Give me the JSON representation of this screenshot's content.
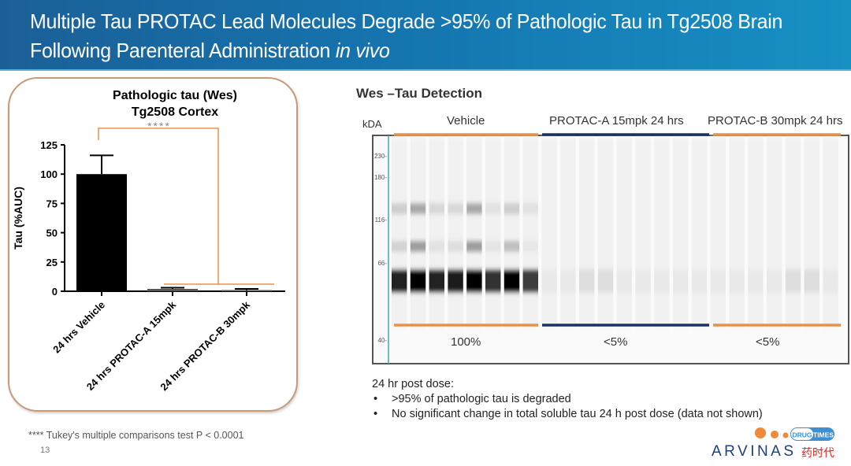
{
  "header": {
    "title_main": "Multiple Tau PROTAC Lead Molecules Degrade >95% of Pathologic Tau in Tg2508 Brain Following Parenteral Administration",
    "title_italic": "in vivo"
  },
  "chart_data": {
    "type": "bar",
    "title": "Pathologic tau (Wes)",
    "subtitle": "Tg2508 Cortex",
    "ylabel": "Tau (%AUC)",
    "xlabel": "",
    "ylim": [
      0,
      125
    ],
    "yticks": [
      "0",
      "25",
      "50",
      "75",
      "100",
      "125"
    ],
    "categories": [
      "24 hrs Vehicle",
      "24 hrs PROTAC-A 15mpk",
      "24 hrs PROTAC-B 30mpk"
    ],
    "values": [
      100,
      2,
      1
    ],
    "errors": [
      16,
      1,
      1
    ],
    "colors": [
      "#000000",
      "#555555",
      "#555555"
    ],
    "significance": "****",
    "bracket_color": "#e8914a",
    "grid": false
  },
  "footnote": "**** Tukey's multiple comparisons test P < 0.0001",
  "page_number": "13",
  "wes": {
    "title": "Wes –Tau Detection",
    "kda_label": "kDA",
    "markers": [
      "230",
      "180",
      "116",
      "66",
      "40"
    ],
    "groups": [
      {
        "label": "Vehicle",
        "percent": "100%",
        "color": "#e8914a"
      },
      {
        "label": "PROTAC-A 15mpk 24 hrs",
        "percent": "<5%",
        "color": "#1b2f6b"
      },
      {
        "label": "PROTAC-B 30mpk 24 hrs",
        "percent": "<5%",
        "color": "#e8914a"
      }
    ]
  },
  "notes": {
    "heading": "24 hr post dose:",
    "bullets": [
      ">95% of pathologic tau is degraded",
      "No significant change in total soluble tau 24 h post dose (data not shown)"
    ]
  },
  "logo": {
    "text": "ARVINAS",
    "badge_left": "DRUG",
    "badge_right": "TIMES",
    "badge_cn": "药时代",
    "dot_color": "#f08a3a",
    "text_color": "#1d3f7a"
  }
}
